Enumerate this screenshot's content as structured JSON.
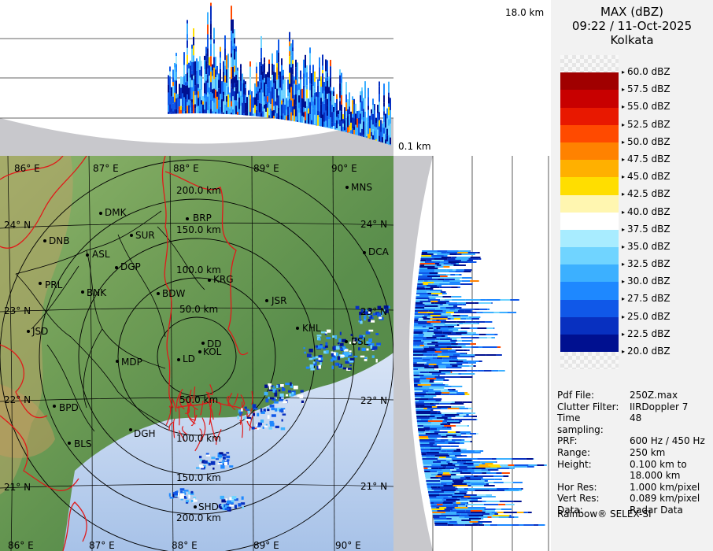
{
  "header": {
    "product": "MAX (dBZ)",
    "datetime": "09:22 / 11-Oct-2025",
    "station": "Kolkata"
  },
  "profile_labels": {
    "top_height": "18.0 km",
    "bottom_height": "0.1 km"
  },
  "legend": [
    {
      "label": "60.0 dBZ",
      "color": "checker"
    },
    {
      "label": "57.5 dBZ",
      "color": "#a00000"
    },
    {
      "label": "55.0 dBZ",
      "color": "#c80000"
    },
    {
      "label": "52.5 dBZ",
      "color": "#e81800"
    },
    {
      "label": "50.0 dBZ",
      "color": "#ff4a00"
    },
    {
      "label": "47.5 dBZ",
      "color": "#ff8200"
    },
    {
      "label": "45.0 dBZ",
      "color": "#ffb000"
    },
    {
      "label": "42.5 dBZ",
      "color": "#ffde00"
    },
    {
      "label": "40.0 dBZ",
      "color": "#fff6b0"
    },
    {
      "label": "37.5 dBZ",
      "color": "#ffffff"
    },
    {
      "label": "35.0 dBZ",
      "color": "#a8ecff"
    },
    {
      "label": "32.5 dBZ",
      "color": "#70d4ff"
    },
    {
      "label": "30.0 dBZ",
      "color": "#3cb0ff"
    },
    {
      "label": "27.5 dBZ",
      "color": "#1e88ff"
    },
    {
      "label": "25.0 dBZ",
      "color": "#1058e8"
    },
    {
      "label": "22.5 dBZ",
      "color": "#0830c0"
    },
    {
      "label": "20.0 dBZ",
      "color": "#001090"
    },
    {
      "label": "",
      "color": "checker"
    }
  ],
  "info": [
    {
      "key": "Pdf File:",
      "value": "250Z.max"
    },
    {
      "key": "Clutter Filter:",
      "value": "IIRDoppler 7"
    },
    {
      "key": "Time sampling:",
      "value": "48"
    },
    {
      "key": "PRF:",
      "value": "600 Hz / 450 Hz"
    },
    {
      "key": "Range:",
      "value": "250 km"
    },
    {
      "key": "Height:",
      "value": "0.100 km to"
    },
    {
      "key": "",
      "value": "18.000 km"
    },
    {
      "key": "Hor Res:",
      "value": "1.000 km/pixel"
    },
    {
      "key": "Vert Res:",
      "value": "0.089 km/pixel"
    },
    {
      "key": "Data:",
      "value": "Radar Data"
    }
  ],
  "brand": "Rainbow® SELEX-SI",
  "map": {
    "lon_labels_top": [
      "86° E",
      "87° E",
      "88° E",
      "89° E",
      "90° E"
    ],
    "lon_labels_bottom": [
      "86° E",
      "87° E",
      "88° E",
      "89° E",
      "90° E"
    ],
    "lat_labels_left": [
      "24° N",
      "23° N",
      "22° N",
      "21° N"
    ],
    "lat_labels_right": [
      "24° N",
      "23° N",
      "22° N",
      "21° N"
    ],
    "ring_labels": [
      "200.0 km",
      "150.0 km",
      "100.0 km",
      "50.0 km",
      "50.0 km",
      "100.0 km",
      "150.0 km",
      "200.0 km"
    ],
    "cities": [
      {
        "name": "MNS"
      },
      {
        "name": "DMK"
      },
      {
        "name": "BRP"
      },
      {
        "name": "DNB"
      },
      {
        "name": "SUR"
      },
      {
        "name": "ASL"
      },
      {
        "name": "DGP"
      },
      {
        "name": "DCA"
      },
      {
        "name": "KRG"
      },
      {
        "name": "PRL"
      },
      {
        "name": "BNK"
      },
      {
        "name": "BDW"
      },
      {
        "name": "JSR"
      },
      {
        "name": "JSD"
      },
      {
        "name": "KHL"
      },
      {
        "name": "BSL"
      },
      {
        "name": "DD"
      },
      {
        "name": "KOL"
      },
      {
        "name": "LD"
      },
      {
        "name": "MDP"
      },
      {
        "name": "BPD"
      },
      {
        "name": "DGH"
      },
      {
        "name": "BLS"
      },
      {
        "name": "SHD"
      }
    ]
  }
}
